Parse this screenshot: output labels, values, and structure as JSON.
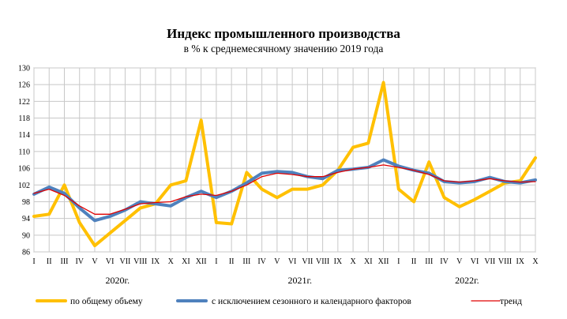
{
  "chart_data": {
    "type": "line",
    "title": "Индекс промышленного производства",
    "subtitle": "в % к среднемесячному значению 2019 года",
    "ylim": [
      86,
      130
    ],
    "yticks": [
      86,
      90,
      94,
      98,
      102,
      106,
      110,
      114,
      118,
      122,
      126,
      130
    ],
    "grid": true,
    "legend_position": "bottom",
    "categories": [
      "I",
      "II",
      "III",
      "IV",
      "V",
      "VI",
      "VII",
      "VIII",
      "IX",
      "X",
      "XI",
      "XII",
      "I",
      "II",
      "III",
      "IV",
      "V",
      "VI",
      "VII",
      "VIII",
      "IX",
      "X",
      "XI",
      "XII",
      "I",
      "II",
      "III",
      "IV",
      "V",
      "VI",
      "VII",
      "VIII",
      "IX",
      "X"
    ],
    "years": [
      {
        "label": "2020г.",
        "start": 0,
        "end": 11
      },
      {
        "label": "2021г.",
        "start": 12,
        "end": 23
      },
      {
        "label": "2022г.",
        "start": 24,
        "end": 33
      }
    ],
    "series": [
      {
        "name": "по общему объему",
        "color": "#FFC000",
        "values": [
          94.5,
          95.0,
          102.0,
          93.0,
          87.5,
          90.5,
          93.5,
          96.5,
          97.5,
          102.0,
          103.0,
          117.5,
          93.0,
          92.7,
          105.0,
          101.0,
          99.0,
          101.0,
          101.0,
          102.0,
          105.5,
          111.0,
          112.0,
          126.5,
          101.0,
          98.0,
          107.5,
          99.0,
          96.8,
          98.5,
          100.5,
          102.5,
          103.0,
          108.5
        ]
      },
      {
        "name": "с исключением сезонного и календарного факторов",
        "color": "#4F81BD",
        "values": [
          99.8,
          101.5,
          100.0,
          96.5,
          93.5,
          94.5,
          96.0,
          98.0,
          97.5,
          97.0,
          99.0,
          100.5,
          99.0,
          100.5,
          102.5,
          104.8,
          105.2,
          105.0,
          104.0,
          103.5,
          105.5,
          105.8,
          106.2,
          108.0,
          106.5,
          105.5,
          104.8,
          102.8,
          102.5,
          102.8,
          103.8,
          102.8,
          102.5,
          103.2
        ]
      },
      {
        "name": "тренд",
        "color": "#E00000",
        "values": [
          100.0,
          101.0,
          99.5,
          97.0,
          95.0,
          95.0,
          96.2,
          97.5,
          97.8,
          98.0,
          99.2,
          99.8,
          99.5,
          100.5,
          102.0,
          104.0,
          104.8,
          104.5,
          104.0,
          104.0,
          105.0,
          105.8,
          106.2,
          106.8,
          106.2,
          105.5,
          104.5,
          103.0,
          102.7,
          103.0,
          103.5,
          103.0,
          102.7,
          102.8
        ]
      }
    ]
  }
}
